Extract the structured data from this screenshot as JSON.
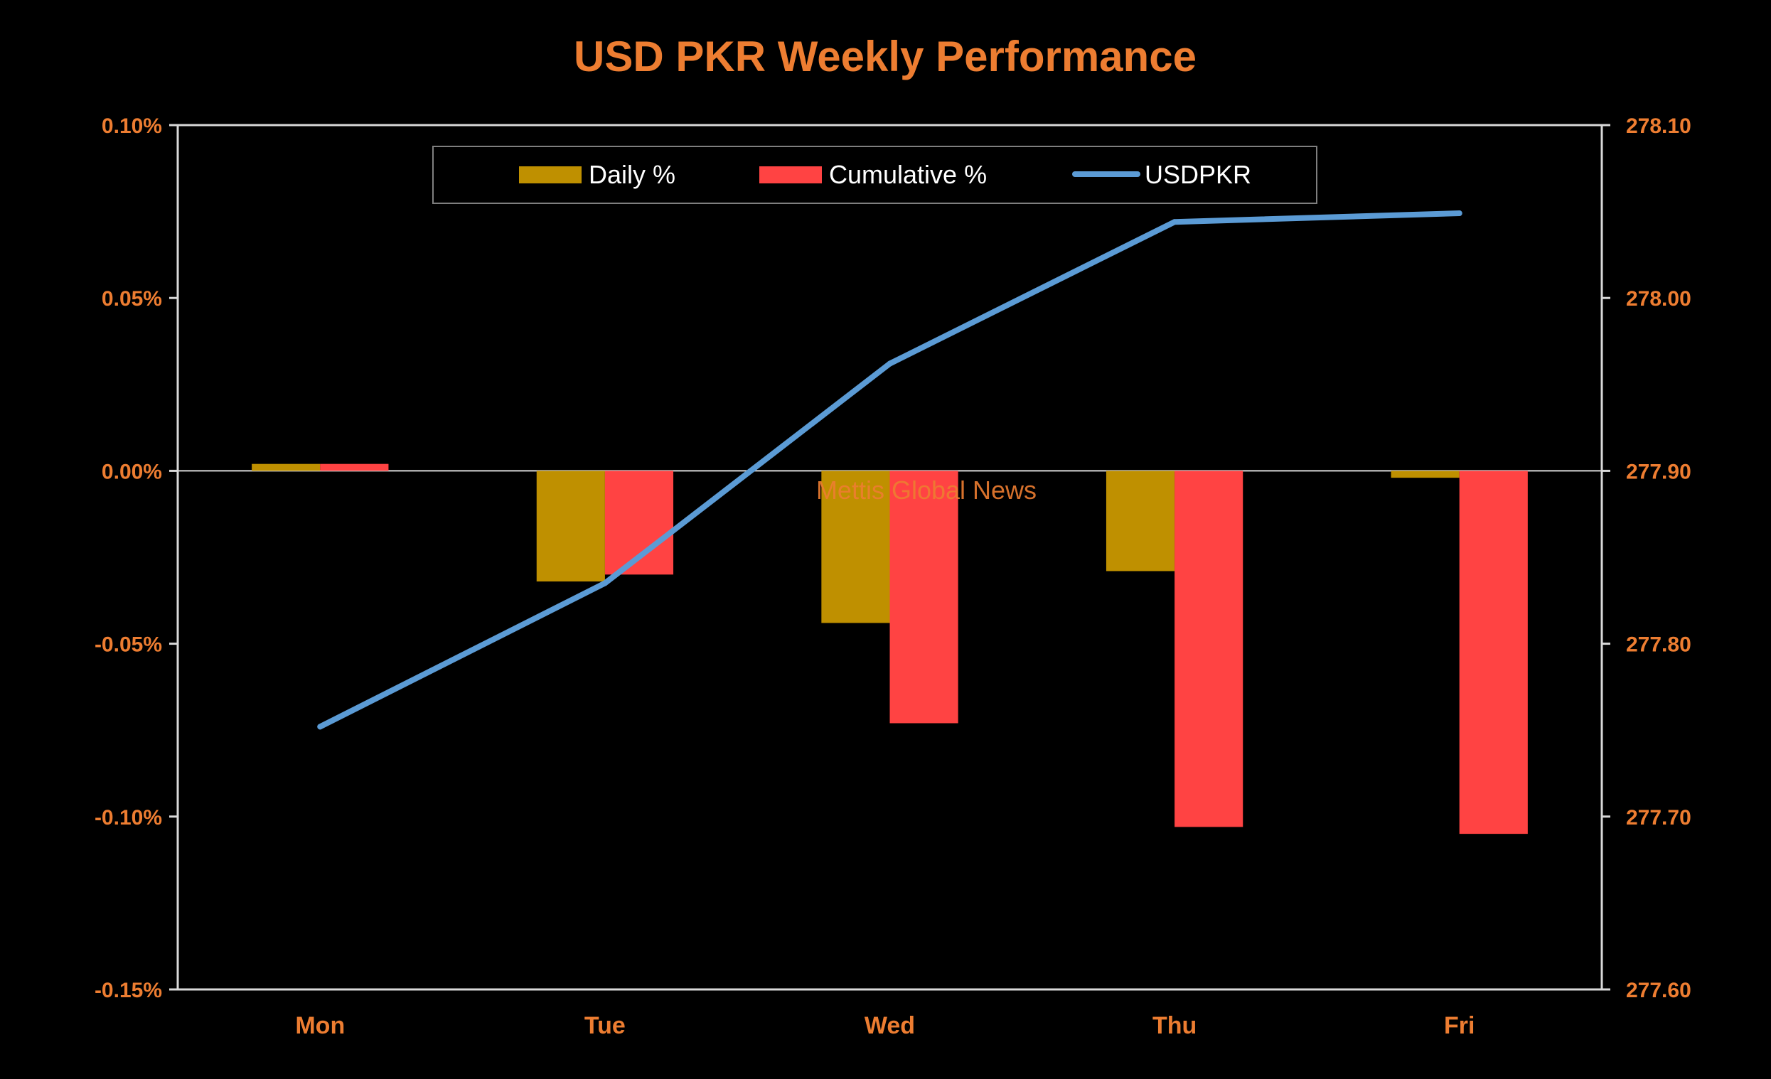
{
  "colors": {
    "background": "#000000",
    "title": "#ED7D31",
    "tick_labels": "#ED7D31",
    "axis_lines": "#D9D9D9",
    "daily": "#BF9000",
    "cumulative": "#FF4343",
    "usdpkr": "#5B9BD5",
    "legend_text": "#FFFFFF",
    "watermark": "#ED7D31"
  },
  "chart_data": {
    "type": "bar",
    "title": "USD PKR Weekly Performance",
    "categories": [
      "Mon",
      "Tue",
      "Wed",
      "Thu",
      "Fri"
    ],
    "series": [
      {
        "name": "Daily %",
        "type": "bar",
        "axis": "left",
        "values": [
          0.002,
          -0.032,
          -0.044,
          -0.029,
          -0.002
        ]
      },
      {
        "name": "Cumulative %",
        "type": "bar",
        "axis": "left",
        "values": [
          0.002,
          -0.03,
          -0.073,
          -0.103,
          -0.105
        ]
      },
      {
        "name": "USDPKR",
        "type": "line",
        "axis": "right",
        "values": [
          277.752,
          277.835,
          277.962,
          278.044,
          278.049
        ]
      }
    ],
    "y_left": {
      "min": -0.15,
      "max": 0.1,
      "ticks": [
        "0.10%",
        "0.05%",
        "0.00%",
        "-0.05%",
        "-0.10%",
        "-0.15%"
      ]
    },
    "y_right": {
      "min": 277.6,
      "max": 278.1,
      "ticks": [
        "278.10",
        "278.00",
        "277.90",
        "277.80",
        "277.70",
        "277.60"
      ]
    },
    "legend": {
      "position": "top",
      "entries": [
        "Daily %",
        "Cumulative %",
        "USDPKR"
      ]
    },
    "grid": false,
    "watermark": "Mettis Global News"
  }
}
